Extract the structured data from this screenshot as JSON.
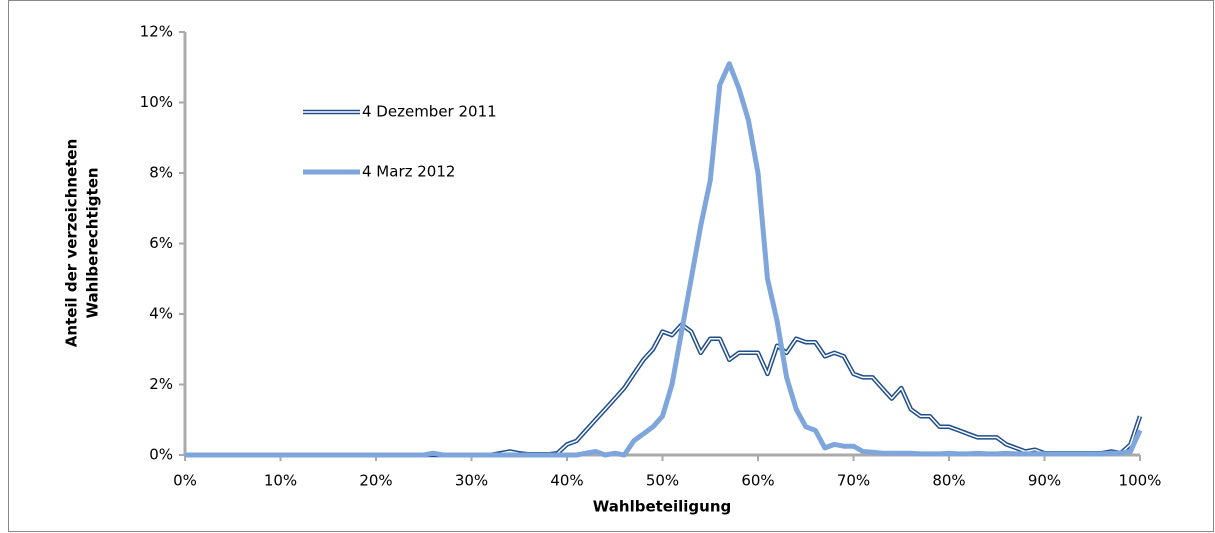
{
  "chart_data": {
    "type": "line",
    "xlabel": "Wahlbeteiligung",
    "ylabel": [
      "Anteil der verzeichneten",
      "Wahlberechtigten"
    ],
    "x": [
      0,
      1,
      2,
      3,
      4,
      5,
      6,
      7,
      8,
      9,
      10,
      11,
      12,
      13,
      14,
      15,
      16,
      17,
      18,
      19,
      20,
      21,
      22,
      23,
      24,
      25,
      26,
      27,
      28,
      29,
      30,
      31,
      32,
      33,
      34,
      35,
      36,
      37,
      38,
      39,
      40,
      41,
      42,
      43,
      44,
      45,
      46,
      47,
      48,
      49,
      50,
      51,
      52,
      53,
      54,
      55,
      56,
      57,
      58,
      59,
      60,
      61,
      62,
      63,
      64,
      65,
      66,
      67,
      68,
      69,
      70,
      71,
      72,
      73,
      74,
      75,
      76,
      77,
      78,
      79,
      80,
      81,
      82,
      83,
      84,
      85,
      86,
      87,
      88,
      89,
      90,
      91,
      92,
      93,
      94,
      95,
      96,
      97,
      98,
      99,
      100
    ],
    "series": [
      {
        "name": "4 Dezember 2011",
        "color": "#1f4e8c",
        "style": "double",
        "values": [
          0,
          0,
          0,
          0,
          0,
          0,
          0,
          0,
          0,
          0,
          0,
          0,
          0,
          0,
          0,
          0,
          0,
          0,
          0,
          0,
          0,
          0,
          0,
          0,
          0,
          0,
          0,
          0,
          0,
          0,
          0,
          0,
          0,
          0.05,
          0.1,
          0.05,
          0.02,
          0.02,
          0.02,
          0.05,
          0.3,
          0.4,
          0.7,
          1.0,
          1.3,
          1.6,
          1.9,
          2.3,
          2.7,
          3.0,
          3.5,
          3.4,
          3.7,
          3.5,
          2.9,
          3.3,
          3.3,
          2.7,
          2.9,
          2.9,
          2.9,
          2.3,
          3.1,
          2.9,
          3.3,
          3.2,
          3.2,
          2.8,
          2.9,
          2.8,
          2.3,
          2.2,
          2.2,
          1.9,
          1.6,
          1.9,
          1.3,
          1.1,
          1.1,
          0.8,
          0.8,
          0.7,
          0.6,
          0.5,
          0.5,
          0.5,
          0.3,
          0.2,
          0.1,
          0.15,
          0.05,
          0.05,
          0.05,
          0.05,
          0.05,
          0.05,
          0.05,
          0.1,
          0.05,
          0.3,
          1.1
        ]
      },
      {
        "name": "4 Marz 2012",
        "color": "#7ea6dc",
        "style": "thick",
        "values": [
          0,
          0,
          0,
          0,
          0,
          0,
          0,
          0,
          0,
          0,
          0,
          0,
          0,
          0,
          0,
          0,
          0,
          0,
          0,
          0,
          0,
          0,
          0,
          0,
          0,
          0,
          0.05,
          0,
          0,
          0,
          0,
          0,
          0,
          0,
          0,
          0,
          0,
          0,
          0,
          0,
          0,
          0,
          0.05,
          0.1,
          0,
          0.05,
          0,
          0.4,
          0.6,
          0.8,
          1.1,
          2.0,
          3.5,
          5.0,
          6.5,
          7.8,
          10.5,
          11.1,
          10.4,
          9.5,
          8.0,
          5.0,
          3.8,
          2.2,
          1.3,
          0.8,
          0.7,
          0.2,
          0.3,
          0.25,
          0.25,
          0.1,
          0.08,
          0.05,
          0.05,
          0.05,
          0.05,
          0.03,
          0.03,
          0.03,
          0.05,
          0.03,
          0.03,
          0.05,
          0.03,
          0.03,
          0.05,
          0.03,
          0.03,
          0.03,
          0.03,
          0.03,
          0.03,
          0.03,
          0.03,
          0.03,
          0.03,
          0.05,
          0.05,
          0.1,
          0.7
        ]
      }
    ],
    "xlim": [
      0,
      100
    ],
    "xticks": [
      {
        "value": 0,
        "label": "0%"
      },
      {
        "value": 10,
        "label": "10%"
      },
      {
        "value": 20,
        "label": "20%"
      },
      {
        "value": 30,
        "label": "30%"
      },
      {
        "value": 40,
        "label": "40%"
      },
      {
        "value": 50,
        "label": "50%"
      },
      {
        "value": 60,
        "label": "60%"
      },
      {
        "value": 70,
        "label": "70%"
      },
      {
        "value": 80,
        "label": "80%"
      },
      {
        "value": 90,
        "label": "90%"
      },
      {
        "value": 100,
        "label": "100%"
      }
    ],
    "ylim": [
      0,
      12
    ],
    "yticks": [
      {
        "value": 0,
        "label": "0%"
      },
      {
        "value": 2,
        "label": "2%"
      },
      {
        "value": 4,
        "label": "4%"
      },
      {
        "value": 6,
        "label": "6%"
      },
      {
        "value": 8,
        "label": "8%"
      },
      {
        "value": 10,
        "label": "10%"
      },
      {
        "value": 12,
        "label": "12%"
      }
    ],
    "legend": "upper left"
  }
}
